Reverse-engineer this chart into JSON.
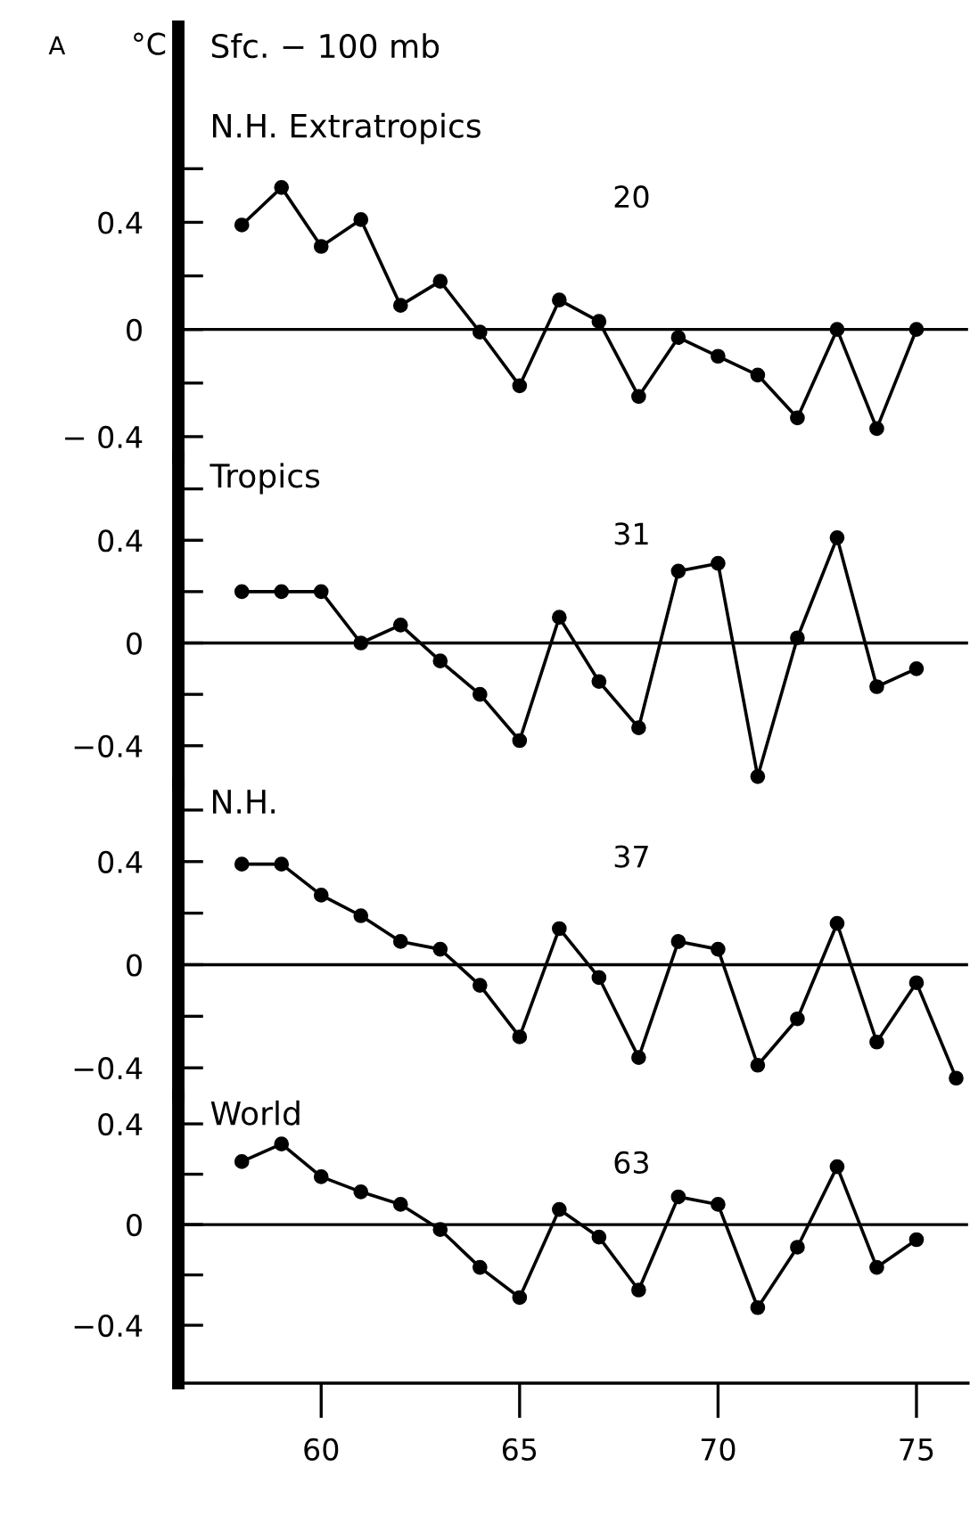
{
  "chart_data": [
    {
      "type": "line",
      "title": "N.H. Extratropics",
      "subtitle": "Sfc. − 100 mb",
      "ylabel": "°C",
      "annotations": [
        "20",
        "A"
      ],
      "x": [
        58,
        59,
        60,
        61,
        62,
        63,
        64,
        65,
        66,
        67,
        68,
        69,
        70,
        71,
        72,
        73,
        74,
        75
      ],
      "series": [
        {
          "color": "#000000",
          "values": [
            0.39,
            0.53,
            0.31,
            0.41,
            0.09,
            0.18,
            -0.01,
            -0.21,
            0.11,
            0.03,
            -0.25,
            -0.03,
            -0.1,
            -0.17,
            -0.33,
            0.0,
            -0.37,
            0.0
          ]
        }
      ],
      "xlim": [
        56.4,
        76.3
      ],
      "ylim": [
        -0.48,
        1.13
      ],
      "yticks": [
        {
          "value": 0.6,
          "label": null
        },
        0.4,
        {
          "value": 0.2,
          "label": null
        },
        0,
        {
          "value": -0.2,
          "label": null
        },
        {
          "value": -0.4,
          "label": "− 0.4"
        }
      ],
      "ref_lines": [
        {
          "axis": "y",
          "value": 0
        }
      ],
      "tick_labels": "y",
      "marker": "circle",
      "line_style": "solid",
      "grid": false,
      "legend": false
    },
    {
      "type": "line",
      "title": "Tropics",
      "annotations": [
        "31"
      ],
      "x": [
        58,
        59,
        60,
        61,
        62,
        63,
        64,
        65,
        66,
        67,
        68,
        69,
        70,
        71,
        72,
        73,
        74,
        75
      ],
      "series": [
        {
          "color": "#000000",
          "values": [
            0.2,
            0.2,
            0.2,
            0.0,
            0.07,
            -0.07,
            -0.2,
            -0.38,
            0.1,
            -0.15,
            -0.33,
            0.28,
            0.31,
            -0.52,
            0.02,
            0.41,
            -0.17,
            -0.1
          ]
        }
      ],
      "xlim": [
        56.4,
        76.3
      ],
      "ylim": [
        -0.55,
        0.72
      ],
      "yticks": [
        {
          "value": 0.6,
          "label": null
        },
        0.4,
        {
          "value": 0.2,
          "label": null
        },
        0,
        {
          "value": -0.2,
          "label": null
        },
        {
          "value": -0.4,
          "label": "−0.4"
        }
      ],
      "ref_lines": [
        {
          "axis": "y",
          "value": 0
        }
      ],
      "tick_labels": "y",
      "marker": "circle",
      "line_style": "solid",
      "grid": false,
      "legend": false
    },
    {
      "type": "line",
      "title": "N.H.",
      "annotations": [
        "37"
      ],
      "x": [
        58,
        59,
        60,
        61,
        62,
        63,
        64,
        65,
        66,
        67,
        68,
        69,
        70,
        71,
        72,
        73,
        74,
        75,
        76
      ],
      "series": [
        {
          "color": "#000000",
          "values": [
            0.39,
            0.39,
            0.27,
            0.19,
            0.09,
            0.06,
            -0.08,
            -0.28,
            0.14,
            -0.05,
            -0.36,
            0.09,
            0.06,
            -0.39,
            -0.21,
            0.16,
            -0.3,
            -0.07,
            -0.44
          ]
        }
      ],
      "xlim": [
        56.4,
        76.3
      ],
      "ylim": [
        -0.51,
        0.7
      ],
      "yticks": [
        {
          "value": 0.6,
          "label": null
        },
        0.4,
        {
          "value": 0.2,
          "label": null
        },
        0,
        {
          "value": -0.2,
          "label": null
        },
        {
          "value": -0.4,
          "label": "−0.4"
        }
      ],
      "ref_lines": [
        {
          "axis": "y",
          "value": 0
        }
      ],
      "tick_labels": "y",
      "marker": "circle",
      "line_style": "solid",
      "grid": false,
      "legend": false
    },
    {
      "type": "line",
      "title": "World",
      "annotations": [
        "63"
      ],
      "x": [
        58,
        59,
        60,
        61,
        62,
        63,
        64,
        65,
        66,
        67,
        68,
        69,
        70,
        71,
        72,
        73,
        74,
        75
      ],
      "series": [
        {
          "color": "#000000",
          "values": [
            0.25,
            0.32,
            0.19,
            0.13,
            0.08,
            -0.02,
            -0.17,
            -0.29,
            0.06,
            -0.05,
            -0.26,
            0.11,
            0.08,
            -0.33,
            -0.09,
            0.23,
            -0.17,
            -0.06
          ]
        }
      ],
      "xlim": [
        56.4,
        76.3
      ],
      "xticks": [
        60,
        65,
        70,
        75
      ],
      "ylim": [
        -0.63,
        0.51
      ],
      "yticks": [
        0.4,
        {
          "value": 0.2,
          "label": null
        },
        0,
        {
          "value": -0.2,
          "label": null
        },
        {
          "value": -0.4,
          "label": "−0.4"
        }
      ],
      "ref_lines": [
        {
          "axis": "y",
          "value": 0
        }
      ],
      "marker": "circle",
      "line_style": "solid",
      "grid": false,
      "legend": false
    }
  ]
}
